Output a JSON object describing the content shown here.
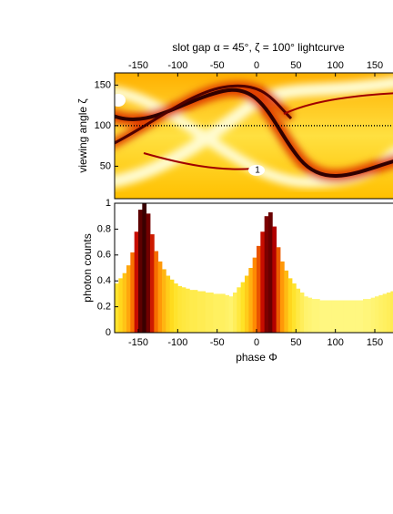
{
  "chart_data": [
    {
      "type": "heatmap",
      "title": "slot gap α = 45°, ζ = 100° lightcurve",
      "y_label": "viewing angle ζ",
      "xlim": [
        -180,
        180
      ],
      "xticks": [
        -150,
        -100,
        -50,
        0,
        50,
        100,
        150
      ],
      "ylim": [
        10,
        165
      ],
      "yticks": [
        50,
        100,
        150
      ],
      "hline": 100,
      "annotations": [
        {
          "text": "1",
          "x": 0,
          "y": 45
        }
      ]
    },
    {
      "type": "histogram",
      "x_label": "phase Φ",
      "y_label": "photon counts",
      "bins": [
        -180,
        -175,
        -170,
        -165,
        -160,
        -155,
        -150,
        -145,
        -140,
        -135,
        -130,
        -125,
        -120,
        -115,
        -110,
        -105,
        -100,
        -95,
        -90,
        -85,
        -80,
        -75,
        -70,
        -65,
        -60,
        -55,
        -50,
        -45,
        -40,
        -35,
        -30,
        -25,
        -20,
        -15,
        -10,
        -5,
        0,
        5,
        10,
        15,
        20,
        25,
        30,
        35,
        40,
        45,
        50,
        55,
        60,
        65,
        70,
        75,
        80,
        85,
        90,
        95,
        100,
        105,
        110,
        115,
        120,
        125,
        130,
        135,
        140,
        145,
        150,
        155,
        160,
        165,
        170,
        175,
        180
      ],
      "values": [
        0.38,
        0.42,
        0.46,
        0.52,
        0.62,
        0.78,
        0.95,
        1.0,
        0.92,
        0.76,
        0.63,
        0.55,
        0.49,
        0.44,
        0.41,
        0.38,
        0.36,
        0.35,
        0.34,
        0.33,
        0.33,
        0.32,
        0.32,
        0.31,
        0.31,
        0.3,
        0.3,
        0.3,
        0.29,
        0.28,
        0.31,
        0.35,
        0.39,
        0.44,
        0.5,
        0.58,
        0.67,
        0.78,
        0.9,
        0.93,
        0.82,
        0.66,
        0.55,
        0.48,
        0.42,
        0.38,
        0.34,
        0.31,
        0.28,
        0.27,
        0.26,
        0.26,
        0.25,
        0.25,
        0.25,
        0.25,
        0.25,
        0.25,
        0.25,
        0.25,
        0.25,
        0.25,
        0.25,
        0.26,
        0.26,
        0.27,
        0.28,
        0.29,
        0.3,
        0.31,
        0.32,
        0.33
      ],
      "xlim": [
        -180,
        180
      ],
      "xticks": [
        -150,
        -100,
        -50,
        0,
        50,
        100,
        150
      ],
      "ylim": [
        0,
        1
      ],
      "yticks": [
        0,
        0.2,
        0.4,
        0.6,
        0.8,
        1
      ],
      "colormap": [
        "#ffffe0",
        "#ffffa0",
        "#ffe020",
        "#ff8000",
        "#c00000",
        "#3a0000"
      ]
    }
  ]
}
